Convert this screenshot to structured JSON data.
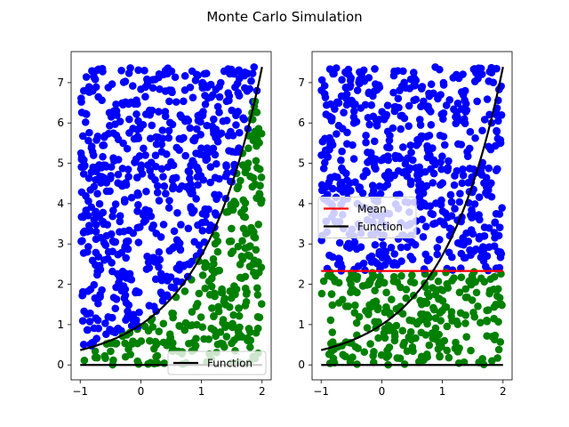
{
  "figure": {
    "title": "Monte Carlo Simulation"
  },
  "colors": {
    "above": "#0000ff",
    "below": "#008000",
    "function": "#000000",
    "mean": "#ff0000"
  },
  "chart_data": [
    {
      "type": "scatter",
      "title": "",
      "xlabel": "",
      "ylabel": "",
      "xlim": [
        -1.15,
        2.15
      ],
      "ylim": [
        -0.37,
        7.77
      ],
      "xticks": [
        -1,
        0,
        1,
        2
      ],
      "yticks": [
        0,
        1,
        2,
        3,
        4,
        5,
        6,
        7
      ],
      "xtick_labels": [
        "−1",
        "0",
        "1",
        "2"
      ],
      "ytick_labels": [
        "0",
        "1",
        "2",
        "3",
        "4",
        "5",
        "6",
        "7"
      ],
      "function": {
        "expression": "exp(x)",
        "xrange": [
          -1,
          2
        ]
      },
      "zero_line": {
        "y": 0,
        "xrange": [
          -1,
          2
        ]
      },
      "samples": {
        "count": 900,
        "xrange": [
          -1,
          2
        ],
        "yrange": [
          0,
          7.39
        ],
        "rule": "green if y < exp(x), else blue"
      },
      "legend": {
        "location": "lower right",
        "entries": [
          {
            "label": "Function",
            "color": "#000000"
          }
        ]
      }
    },
    {
      "type": "scatter",
      "title": "",
      "xlabel": "",
      "ylabel": "",
      "xlim": [
        -1.15,
        2.15
      ],
      "ylim": [
        -0.37,
        7.77
      ],
      "xticks": [
        -1,
        0,
        1,
        2
      ],
      "yticks": [
        0,
        1,
        2,
        3,
        4,
        5,
        6,
        7
      ],
      "xtick_labels": [
        "−1",
        "0",
        "1",
        "2"
      ],
      "ytick_labels": [
        "0",
        "1",
        "2",
        "3",
        "4",
        "5",
        "6",
        "7"
      ],
      "function": {
        "expression": "exp(x)",
        "xrange": [
          -1,
          2
        ]
      },
      "zero_line": {
        "y": 0,
        "xrange": [
          -1,
          2
        ]
      },
      "mean": {
        "value": 2.33,
        "xrange": [
          -1,
          2
        ]
      },
      "samples": {
        "count": 900,
        "xrange": [
          -1,
          2
        ],
        "yrange": [
          0,
          7.39
        ],
        "rule": "green if y < mean, else blue"
      },
      "legend": {
        "location": "center left",
        "entries": [
          {
            "label": "Mean",
            "color": "#ff0000"
          },
          {
            "label": "Function",
            "color": "#000000"
          }
        ]
      }
    }
  ]
}
